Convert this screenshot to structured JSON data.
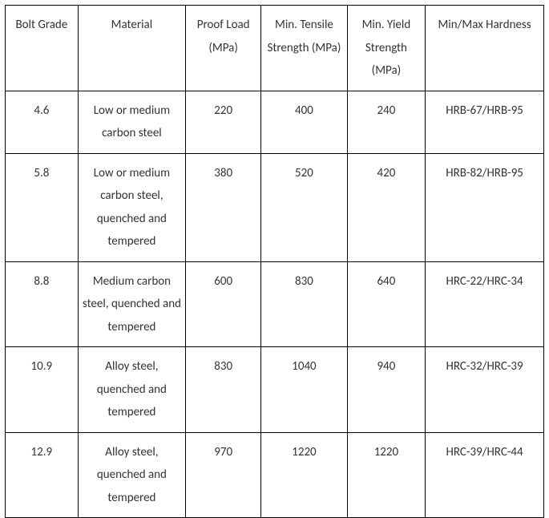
{
  "table": {
    "columns": [
      {
        "key": "grade",
        "label": "Bolt Grade",
        "class": "col-grade"
      },
      {
        "key": "material",
        "label": "Material",
        "class": "col-material"
      },
      {
        "key": "proof",
        "label": "Proof Load (MPa)",
        "class": "col-proof"
      },
      {
        "key": "tensile",
        "label": "Min. Tensile Strength (MPa)",
        "class": "col-tensile"
      },
      {
        "key": "yield",
        "label": "Min. Yield Strength (MPa)",
        "class": "col-yield"
      },
      {
        "key": "hardness",
        "label": "Min/Max Hardness",
        "class": "col-hardness"
      }
    ],
    "rows": [
      {
        "grade": "4.6",
        "material": "Low or medium carbon steel",
        "proof": "220",
        "tensile": "400",
        "yield": "240",
        "hardness": "HRB-67/HRB-95"
      },
      {
        "grade": "5.8",
        "material": "Low or medium carbon steel, quenched and tempered",
        "proof": "380",
        "tensile": "520",
        "yield": "420",
        "hardness": "HRB-82/HRB-95"
      },
      {
        "grade": "8.8",
        "material": "Medium carbon steel, quenched and tempered",
        "proof": "600",
        "tensile": "830",
        "yield": "640",
        "hardness": "HRC-22/HRC-34"
      },
      {
        "grade": "10.9",
        "material": "Alloy steel, quenched and tempered",
        "proof": "830",
        "tensile": "1040",
        "yield": "940",
        "hardness": "HRC-32/HRC-39"
      },
      {
        "grade": "12.9",
        "material": "Alloy steel, quenched and tempered",
        "proof": "970",
        "tensile": "1220",
        "yield": "1220",
        "hardness": "HRC-39/HRC-44"
      }
    ],
    "border_color": "#000000",
    "background_color": "#ffffff",
    "text_color": "#333333",
    "font_size": 15
  }
}
